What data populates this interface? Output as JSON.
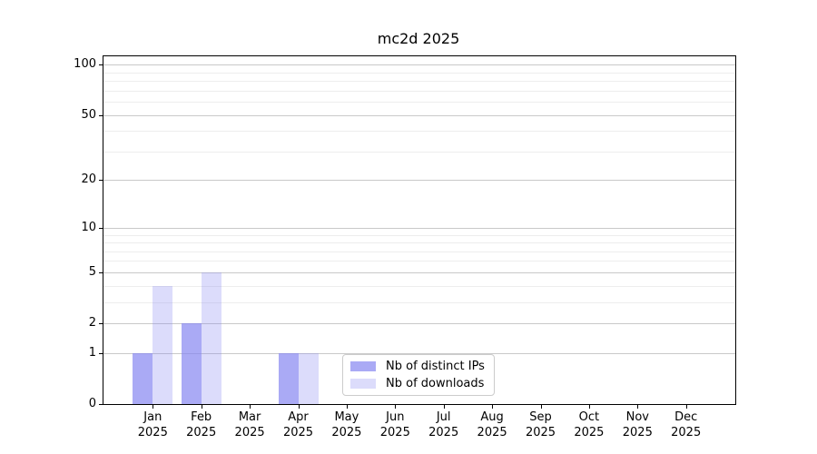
{
  "chart_data": {
    "type": "bar",
    "title": "mc2d 2025",
    "xlabel": "",
    "ylabel": "",
    "yscale": "log1p",
    "ylim": [
      0,
      112
    ],
    "yticks": [
      0,
      1,
      2,
      5,
      10,
      20,
      50,
      100
    ],
    "minor_yticks": [
      3,
      4,
      6,
      7,
      8,
      9,
      30,
      40,
      60,
      70,
      80,
      90
    ],
    "grid": "on",
    "legend_position": "lower center",
    "categories": [
      {
        "label": "Jan",
        "sub": "2025"
      },
      {
        "label": "Feb",
        "sub": "2025"
      },
      {
        "label": "Mar",
        "sub": "2025"
      },
      {
        "label": "Apr",
        "sub": "2025"
      },
      {
        "label": "May",
        "sub": "2025"
      },
      {
        "label": "Jun",
        "sub": "2025"
      },
      {
        "label": "Jul",
        "sub": "2025"
      },
      {
        "label": "Aug",
        "sub": "2025"
      },
      {
        "label": "Sep",
        "sub": "2025"
      },
      {
        "label": "Oct",
        "sub": "2025"
      },
      {
        "label": "Nov",
        "sub": "2025"
      },
      {
        "label": "Dec",
        "sub": "2025"
      }
    ],
    "series": [
      {
        "name": "Nb of distinct IPs",
        "fill": "rgba(130,130,240,0.68)",
        "solid_hex": "#aaaaf5",
        "values": [
          1,
          2,
          0,
          1,
          0,
          0,
          0,
          0,
          0,
          0,
          0,
          0
        ]
      },
      {
        "name": "Nb of downloads",
        "fill": "rgba(130,130,240,0.28)",
        "solid_hex": "#dcdcfb",
        "values": [
          4,
          5,
          0,
          1,
          0,
          0,
          0,
          0,
          0,
          0,
          0,
          0
        ]
      }
    ],
    "colors": {
      "background": "#ffffff",
      "spine": "#000000",
      "major_grid": "#c9c9c9",
      "minor_grid": "#ededed",
      "text": "#000000",
      "legend_border": "#cccccc"
    }
  }
}
